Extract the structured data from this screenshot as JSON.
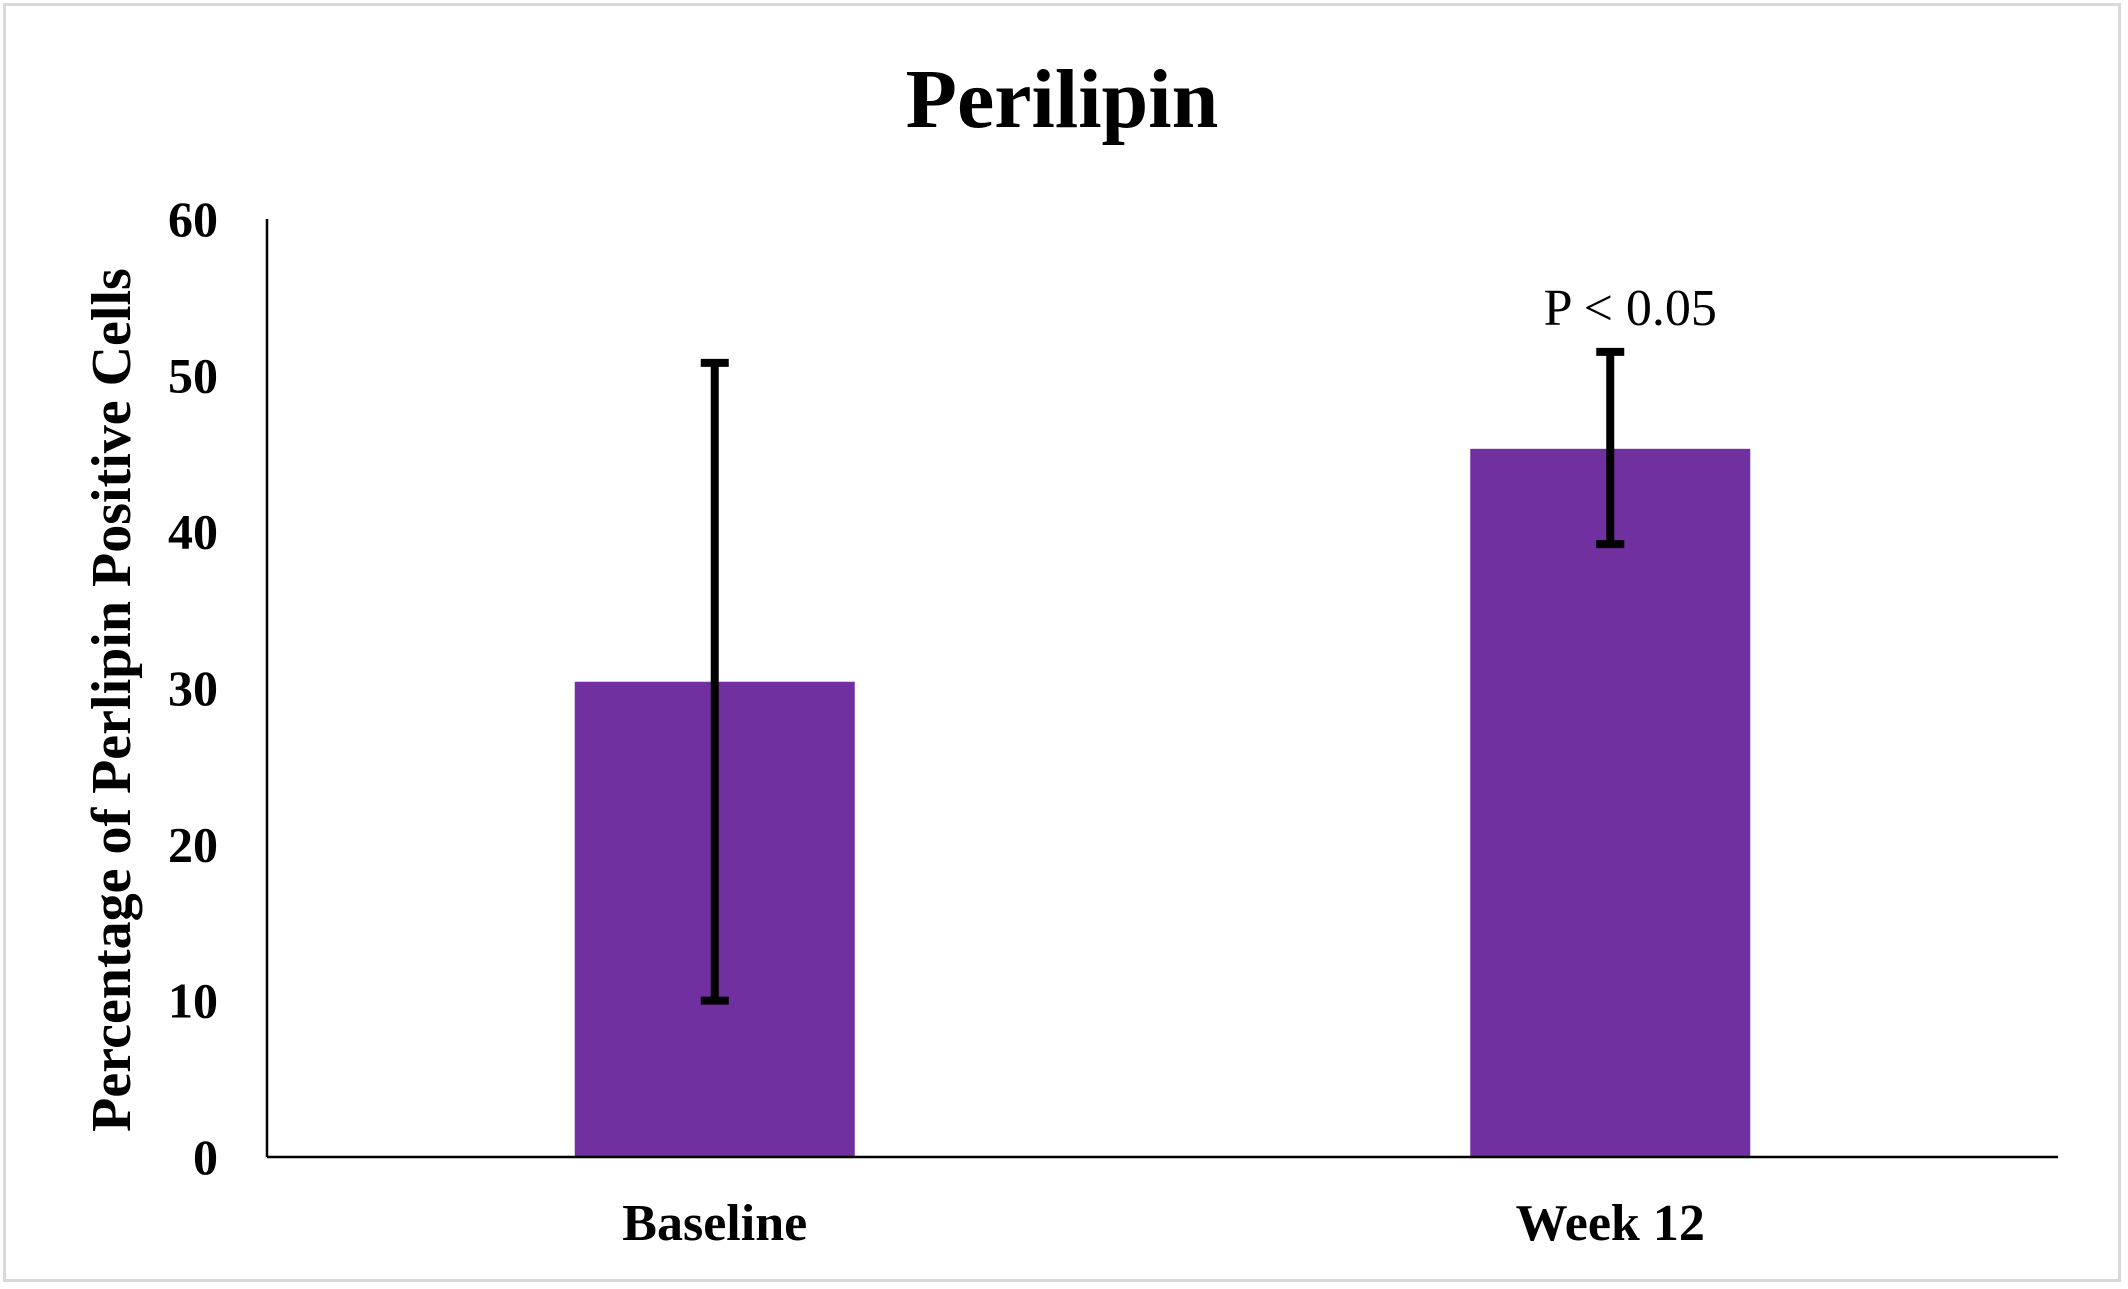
{
  "chart_data": {
    "type": "bar",
    "title": "Perilipin",
    "xlabel": "",
    "ylabel": "Percentage of Perlipin Positive Cells",
    "categories": [
      "Baseline",
      "Week 12"
    ],
    "values": [
      30.4,
      45.3
    ],
    "error_bars": [
      {
        "low": 10.0,
        "high": 50.8
      },
      {
        "low": 39.2,
        "high": 51.5
      }
    ],
    "annotations": [
      {
        "category": "Week 12",
        "text": "P < 0.05"
      }
    ],
    "ylim": [
      0,
      60
    ],
    "yticks": [
      0,
      10,
      20,
      30,
      40,
      50,
      60
    ],
    "grid": false,
    "legend": "none",
    "bar_color": "#7030a0",
    "errorbar_color": "#000000"
  }
}
